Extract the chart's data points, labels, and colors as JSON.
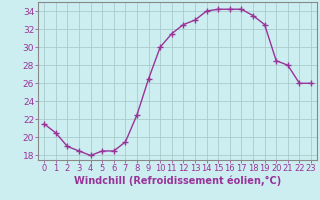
{
  "x": [
    0,
    1,
    2,
    3,
    4,
    5,
    6,
    7,
    8,
    9,
    10,
    11,
    12,
    13,
    14,
    15,
    16,
    17,
    18,
    19,
    20,
    21,
    22,
    23
  ],
  "y": [
    21.5,
    20.5,
    19.0,
    18.5,
    18.0,
    18.5,
    18.5,
    19.5,
    22.5,
    26.5,
    30.0,
    31.5,
    32.5,
    33.0,
    34.0,
    34.2,
    34.2,
    34.2,
    33.5,
    32.5,
    28.5,
    28.0,
    26.0,
    26.0
  ],
  "line_color": "#993399",
  "marker": "+",
  "marker_size": 4,
  "bg_color": "#cceef0",
  "grid_color": "#aacccc",
  "axis_color": "#555555",
  "tick_color": "#993399",
  "xlabel": "Windchill (Refroidissement éolien,°C)",
  "xlabel_fontsize": 7,
  "tick_fontsize": 6,
  "ytick_fontsize": 6.5,
  "ylim": [
    17.5,
    35.0
  ],
  "xlim": [
    -0.5,
    23.5
  ],
  "yticks": [
    18,
    20,
    22,
    24,
    26,
    28,
    30,
    32,
    34
  ],
  "xticks": [
    0,
    1,
    2,
    3,
    4,
    5,
    6,
    7,
    8,
    9,
    10,
    11,
    12,
    13,
    14,
    15,
    16,
    17,
    18,
    19,
    20,
    21,
    22,
    23
  ],
  "xtick_labels": [
    "0",
    "1",
    "2",
    "3",
    "4",
    "5",
    "6",
    "7",
    "8",
    "9",
    "10",
    "11",
    "12",
    "13",
    "14",
    "15",
    "16",
    "17",
    "18",
    "19",
    "20",
    "21",
    "22",
    "23"
  ]
}
